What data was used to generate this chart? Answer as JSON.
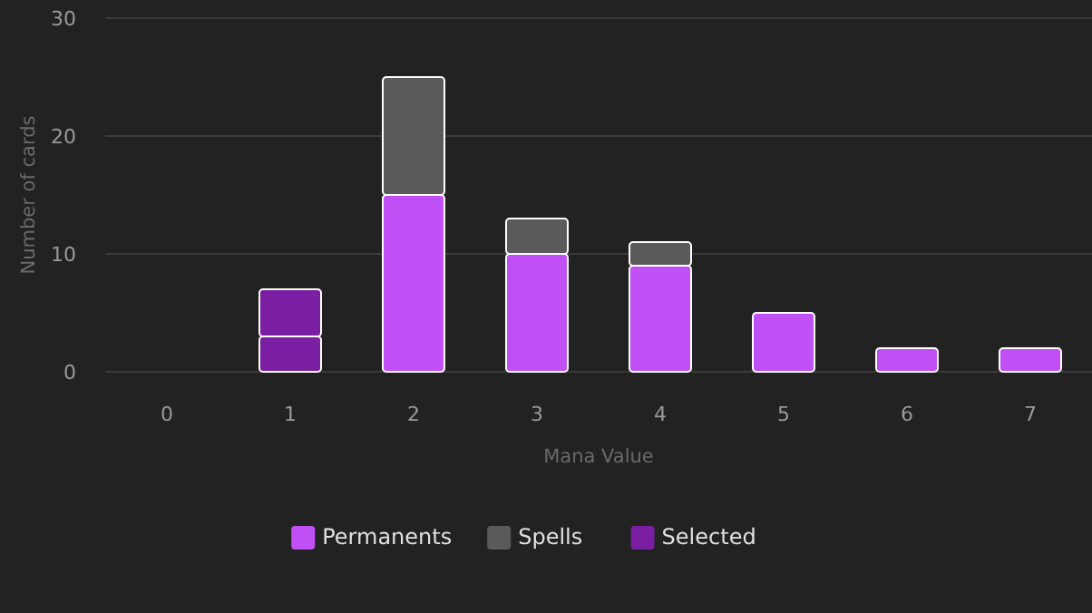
{
  "chart_data": {
    "type": "bar",
    "stacked": true,
    "xlabel": "Mana Value",
    "ylabel": "Number of cards",
    "categories": [
      "0",
      "1",
      "2",
      "3",
      "4",
      "5",
      "6",
      "7"
    ],
    "series": [
      {
        "name": "Permanents",
        "color": "#c050f5",
        "colors": [
          "#c050f5",
          "#7b1fa2",
          "#c050f5",
          "#c050f5",
          "#c050f5",
          "#c050f5",
          "#c050f5",
          "#c050f5"
        ],
        "values": [
          0,
          3,
          15,
          10,
          9,
          5,
          2,
          2
        ]
      },
      {
        "name": "Spells",
        "color": "#5a5a5a",
        "colors": [
          "#5a5a5a",
          "#7b1fa2",
          "#5a5a5a",
          "#5a5a5a",
          "#5a5a5a",
          "#5a5a5a",
          "#5a5a5a",
          "#5a5a5a"
        ],
        "values": [
          0,
          4,
          10,
          3,
          2,
          0,
          0,
          0
        ]
      },
      {
        "name": "Selected",
        "color": "#7b1fa2",
        "values": [
          null,
          null,
          null,
          null,
          null,
          null,
          null,
          null
        ]
      }
    ],
    "ylim": [
      0,
      30
    ],
    "yticks": [
      0,
      10,
      20,
      30
    ],
    "grid": "y",
    "legend": "bottom"
  }
}
